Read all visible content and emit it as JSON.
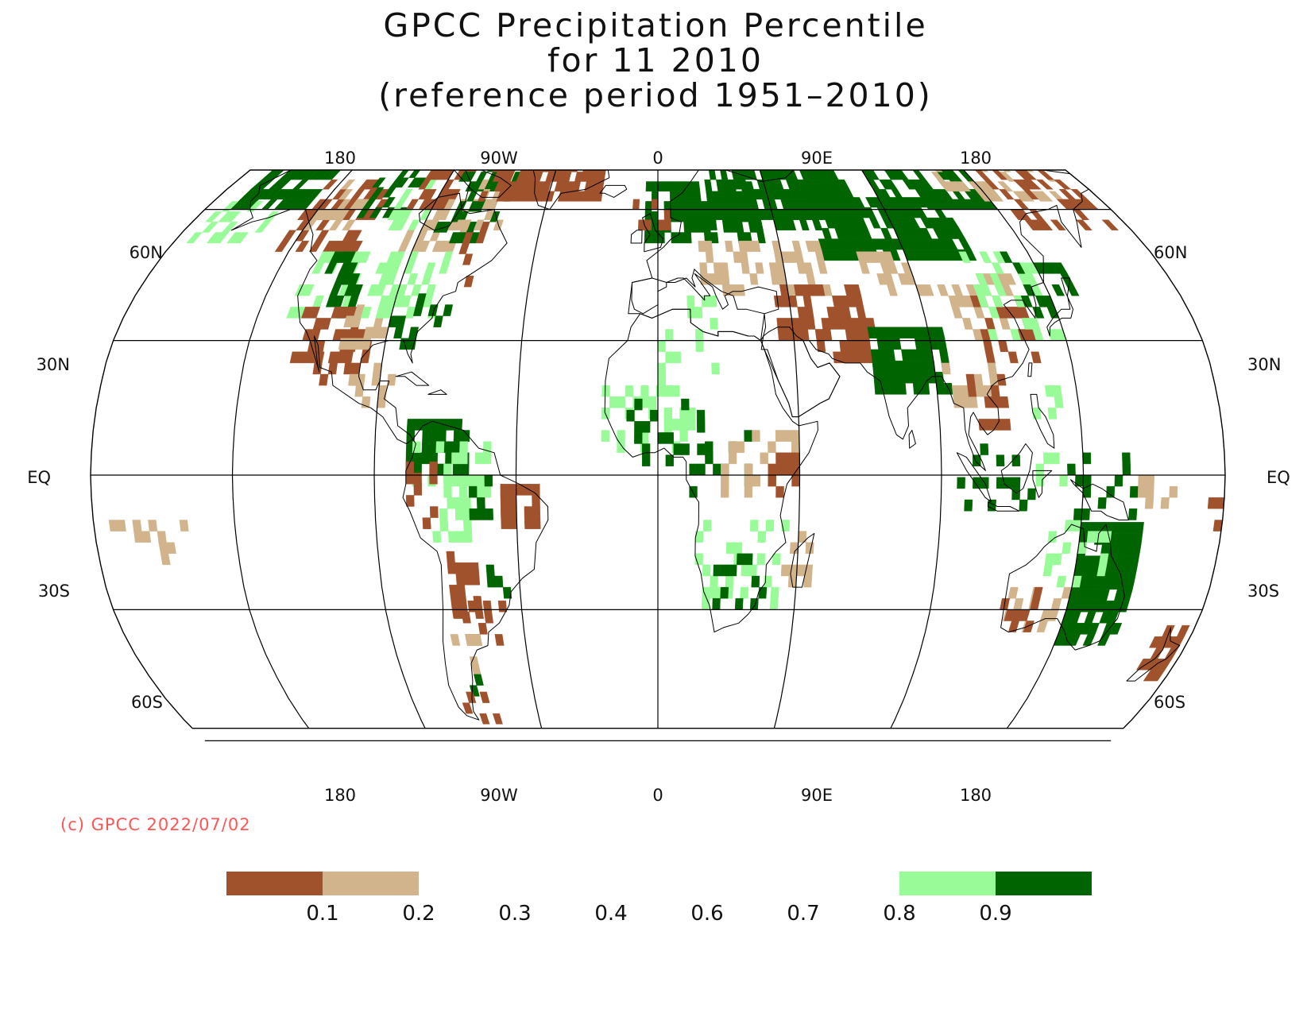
{
  "title": {
    "line1": "GPCC Precipitation Percentile",
    "line2": "for 11 2010",
    "line3": "(reference period 1951–2010)"
  },
  "axes": {
    "top_lon_labels": [
      "180",
      "90W",
      "0",
      "90E",
      "180"
    ],
    "bottom_lon_labels": [
      "180",
      "90W",
      "0",
      "90E",
      "180"
    ],
    "lat_labels_left": [
      "60N",
      "30N",
      "EQ",
      "30S",
      "60S"
    ],
    "lat_labels_right": [
      "60N",
      "30N",
      "EQ",
      "30S",
      "60S"
    ],
    "projection": "Robinson",
    "gridlines": true
  },
  "credit": "(c) GPCC 2022/07/02",
  "legend": {
    "boxes": [
      {
        "range": "< 0.1",
        "color": "#a0522d"
      },
      {
        "range": "0.1 – 0.2",
        "color": "#d2b48c"
      },
      {
        "range": "0.2 – 0.3",
        "color": "#ffffff"
      },
      {
        "range": "0.3 – 0.4",
        "color": "#ffffff"
      },
      {
        "range": "0.4 – 0.6",
        "color": "#ffffff"
      },
      {
        "range": "0.6 – 0.7",
        "color": "#ffffff"
      },
      {
        "range": "0.7 – 0.8",
        "color": "#ffffff"
      },
      {
        "range": "0.8 – 0.9",
        "color": "#98fb98"
      },
      {
        "range": "> 0.9",
        "color": "#006400"
      }
    ],
    "tick_labels": [
      "0.1",
      "0.2",
      "0.3",
      "0.4",
      "0.6",
      "0.7",
      "0.8",
      "0.9"
    ]
  },
  "colors": {
    "very_dry": "#a0522d",
    "dry": "#d2b48c",
    "wet": "#98fb98",
    "very_wet": "#006400",
    "coastline": "#000000",
    "grid": "#000000",
    "credit": "#ff5555"
  }
}
